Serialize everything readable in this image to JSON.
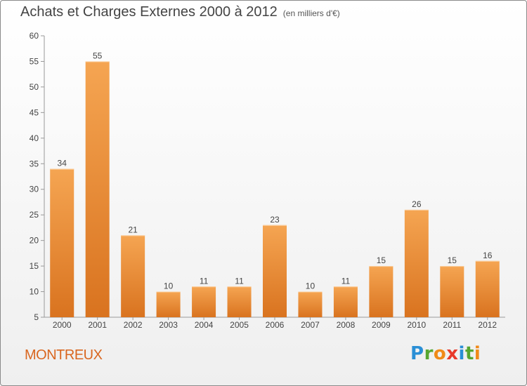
{
  "title": "Achats et Charges Externes 2000 à 2012",
  "subtitle": "(en milliers d'€)",
  "commune": "MONTREUX",
  "logo": {
    "text": "Proxiti",
    "letters": [
      "P",
      "r",
      "o",
      "x",
      "i",
      "t",
      "i"
    ],
    "colors": [
      "#2a8fd6",
      "#56a630",
      "#f08a18",
      "#e8392a",
      "#2a8fd6",
      "#56a630",
      "#f08a18"
    ]
  },
  "chart_data": {
    "type": "bar",
    "categories": [
      "2000",
      "2001",
      "2002",
      "2003",
      "2004",
      "2005",
      "2006",
      "2007",
      "2008",
      "2009",
      "2010",
      "2011",
      "2012"
    ],
    "values": [
      34,
      55,
      21,
      10,
      11,
      11,
      23,
      10,
      11,
      15,
      26,
      15,
      16
    ],
    "ylim": [
      5,
      60
    ],
    "yticks": [
      5,
      10,
      15,
      20,
      25,
      30,
      35,
      40,
      45,
      50,
      55,
      60
    ],
    "grid": false,
    "bar_color": "#f0912e"
  }
}
